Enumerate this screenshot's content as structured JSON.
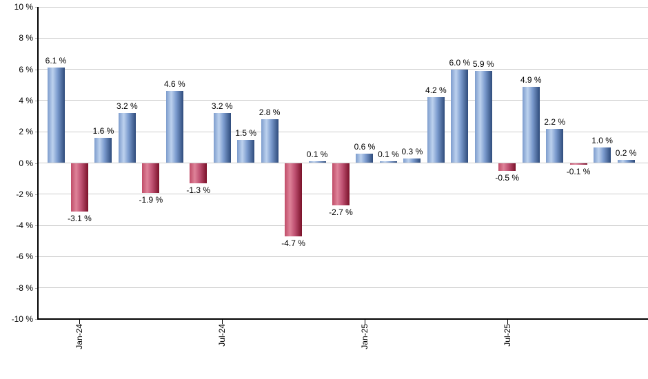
{
  "chart_data": {
    "type": "bar",
    "title": "",
    "unit": "%",
    "values": [
      6.1,
      -3.1,
      1.6,
      3.2,
      -1.9,
      4.6,
      -1.3,
      3.2,
      1.5,
      2.8,
      -4.7,
      0.1,
      -2.7,
      0.6,
      0.1,
      0.3,
      4.2,
      6.0,
      5.9,
      -0.5,
      4.9,
      2.2,
      -0.1,
      1.0,
      0.2
    ],
    "point_labels": [
      "6.1 %",
      "-3.1 %",
      "1.6 %",
      "3.2 %",
      "-1.9 %",
      "4.6 %",
      "-1.3 %",
      "3.2 %",
      "1.5 %",
      "2.8 %",
      "-4.7 %",
      "0.1 %",
      "-2.7 %",
      "0.6 %",
      "0.1 %",
      "0.3 %",
      "4.2 %",
      "6.0 %",
      "5.9 %",
      "-0.5 %",
      "4.9 %",
      "2.2 %",
      "-0.1 %",
      "1.0 %",
      "0.2 %"
    ],
    "x_ticks": [
      {
        "bar_index": 1,
        "label": "Jan-24"
      },
      {
        "bar_index": 7,
        "label": "Jul-24"
      },
      {
        "bar_index": 13,
        "label": "Jan-25"
      },
      {
        "bar_index": 19,
        "label": "Jul-25"
      }
    ],
    "y_ticks": [
      {
        "value": 10,
        "label": "10 %"
      },
      {
        "value": 8,
        "label": "8 %"
      },
      {
        "value": 6,
        "label": "6 %"
      },
      {
        "value": 4,
        "label": "4 %"
      },
      {
        "value": 2,
        "label": "2 %"
      },
      {
        "value": 0,
        "label": "0 %"
      },
      {
        "value": -2,
        "label": "-2 %"
      },
      {
        "value": -4,
        "label": "-4 %"
      },
      {
        "value": -6,
        "label": "-6 %"
      },
      {
        "value": -8,
        "label": "-8 %"
      },
      {
        "value": -10,
        "label": "-10 %"
      }
    ],
    "ylim": [
      -10,
      10
    ],
    "grid": true,
    "legend": null,
    "colors": {
      "positive_bar_stops": [
        "#7d9ccd",
        "#bdd2ee",
        "#7b9bce",
        "#2e4b7b"
      ],
      "negative_bar_stops": [
        "#c04c68",
        "#de8399",
        "#c05273",
        "#7a1129"
      ],
      "gridline": "#cccccc",
      "axis": "#000000",
      "text": "#000000",
      "background": "#ffffff"
    }
  }
}
